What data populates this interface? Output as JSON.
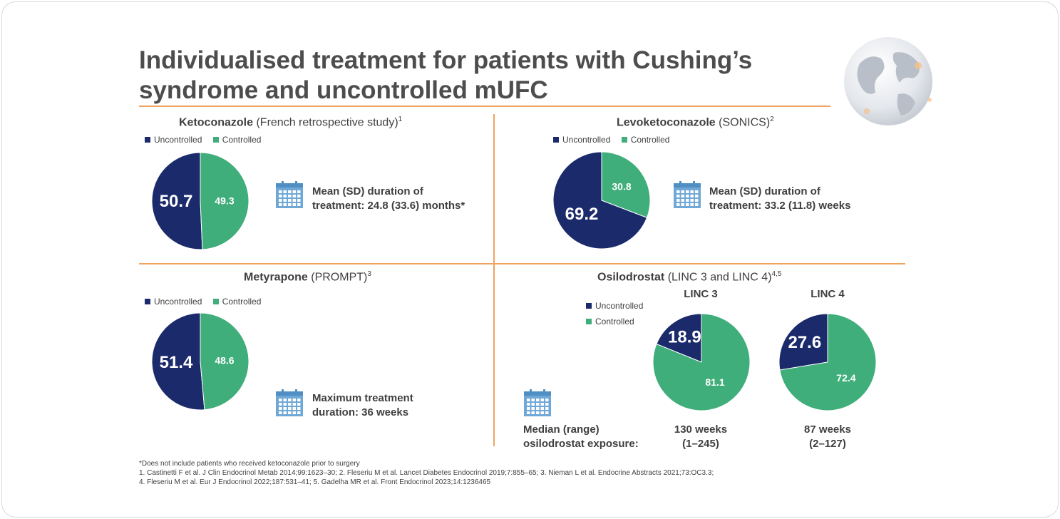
{
  "header": {
    "title_line1": "Individualised treatment for patients with Cushing’s",
    "title_line2": "syndrome and uncontrolled mUFC"
  },
  "colors": {
    "uncontrolled": "#1b2a6b",
    "controlled": "#3fae7a",
    "accent": "#f0a35e",
    "calendar": "#6fa8d6"
  },
  "icons": {
    "calendar": "calendar-icon",
    "globe": "globe-icon"
  },
  "legend": {
    "uncontrolled": "Uncontrolled",
    "controlled": "Controlled"
  },
  "panels": {
    "keto": {
      "drug": "Ketoconazole",
      "study": "(French retrospective study)",
      "ref": "1",
      "info_line1": "Mean (SD) duration of",
      "info_line2": "treatment: 24.8 (33.6) months*"
    },
    "levo": {
      "drug": "Levoketoconazole",
      "study": "(SONICS)",
      "ref": "2",
      "info_line1": "Mean (SD) duration of",
      "info_line2": "treatment: 33.2 (11.8) weeks"
    },
    "mety": {
      "drug": "Metyrapone",
      "study": "(PROMPT)",
      "ref": "3",
      "info_line1": "Maximum treatment",
      "info_line2": "duration: 36 weeks"
    },
    "osilo": {
      "drug": "Osilodrostat",
      "study": "(LINC 3 and LINC 4)",
      "ref": "4,5",
      "linc3_label": "LINC 3",
      "linc4_label": "LINC 4",
      "exposure_label_line1": "Median (range)",
      "exposure_label_line2": "osilodrostat exposure:",
      "linc3_exposure_line1": "130 weeks",
      "linc3_exposure_line2": "(1–245)",
      "linc4_exposure_line1": "87 weeks",
      "linc4_exposure_line2": "(2–127)"
    }
  },
  "chart_data": [
    {
      "type": "pie",
      "title": "Ketoconazole (French retrospective study)",
      "categories": [
        "Uncontrolled",
        "Controlled"
      ],
      "values": [
        50.7,
        49.3
      ],
      "labels": [
        "50.7",
        "49.3"
      ]
    },
    {
      "type": "pie",
      "title": "Levoketoconazole (SONICS)",
      "categories": [
        "Uncontrolled",
        "Controlled"
      ],
      "values": [
        69.2,
        30.8
      ],
      "labels": [
        "69.2",
        "30.8"
      ]
    },
    {
      "type": "pie",
      "title": "Metyrapone (PROMPT)",
      "categories": [
        "Uncontrolled",
        "Controlled"
      ],
      "values": [
        51.4,
        48.6
      ],
      "labels": [
        "51.4",
        "48.6"
      ]
    },
    {
      "type": "pie",
      "title": "LINC 3",
      "categories": [
        "Uncontrolled",
        "Controlled"
      ],
      "values": [
        18.9,
        81.1
      ],
      "labels": [
        "18.9",
        "81.1"
      ]
    },
    {
      "type": "pie",
      "title": "LINC 4",
      "categories": [
        "Uncontrolled",
        "Controlled"
      ],
      "values": [
        27.6,
        72.4
      ],
      "labels": [
        "27.6",
        "72.4"
      ]
    }
  ],
  "footnotes": {
    "asterisk": "*Does not include patients who received ketoconazole prior to surgery",
    "ref_line1": "1. Castinetti F et al. J Clin Endocrinol Metab 2014;99:1623–30; 2. Fleseriu M et al. Lancet Diabetes Endocrinol 2019;7:855–65; 3. Nieman L et al. Endocrine Abstracts 2021;73:OC3.3;",
    "ref_line2": "4. Fleseriu M et al. Eur J Endocrinol 2022;187:531–41; 5. Gadelha MR et al. Front Endocrinol 2023;14:1236465"
  }
}
